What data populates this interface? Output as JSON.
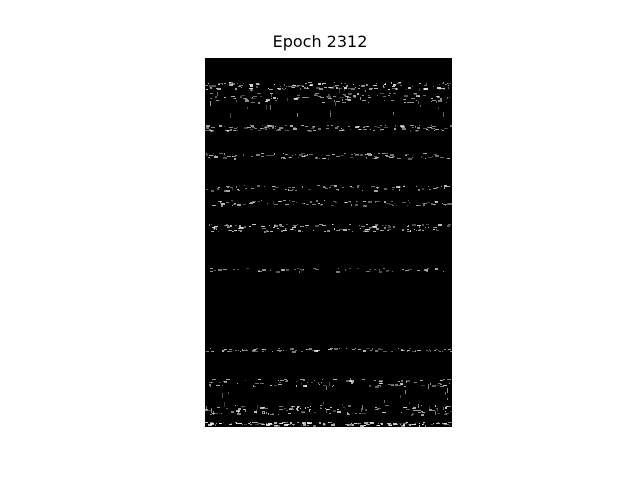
{
  "figure": {
    "title": "Epoch 2312"
  },
  "image": {
    "background_color": "#000000",
    "foreground_color": "#ffffff"
  }
}
